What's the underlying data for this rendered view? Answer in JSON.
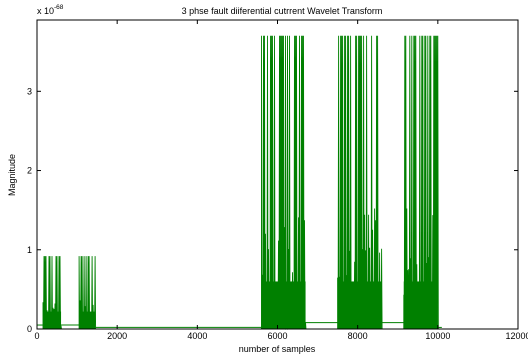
{
  "chart_data": {
    "type": "line",
    "title": "3 phse fault diiferential cutrrent Wavelet Transform",
    "xlabel": "number of samples",
    "ylabel": "Magnitude",
    "y_exponent_label": "x 10",
    "y_exponent_value": "-68",
    "xlim": [
      0,
      12000
    ],
    "ylim": [
      0,
      3.9
    ],
    "x_ticks": [
      0,
      2000,
      4000,
      6000,
      8000,
      10000,
      12000
    ],
    "y_ticks": [
      0,
      1,
      2,
      3
    ],
    "grid": false,
    "line_color": "#008000",
    "bursts": [
      {
        "x_start": 150,
        "x_end": 600,
        "peak": 0.92,
        "level": 0.22
      },
      {
        "x_start": 1050,
        "x_end": 1450,
        "peak": 0.92,
        "level": 0.22
      },
      {
        "x_start": 5600,
        "x_end": 6700,
        "peak": 3.7,
        "level": 0.6
      },
      {
        "x_start": 7500,
        "x_end": 8600,
        "peak": 3.7,
        "level": 0.6
      },
      {
        "x_start": 9150,
        "x_end": 10000,
        "peak": 3.7,
        "level": 0.6
      }
    ],
    "baseline_segments": [
      {
        "x_start": 0,
        "x_end": 150,
        "value": 0.05
      },
      {
        "x_start": 600,
        "x_end": 1050,
        "value": 0.05
      },
      {
        "x_start": 1450,
        "x_end": 5600,
        "value": 0.02
      },
      {
        "x_start": 6700,
        "x_end": 7500,
        "value": 0.08
      },
      {
        "x_start": 8600,
        "x_end": 9150,
        "value": 0.08
      },
      {
        "x_start": 10000,
        "x_end": 10100,
        "value": 0.02
      }
    ]
  }
}
